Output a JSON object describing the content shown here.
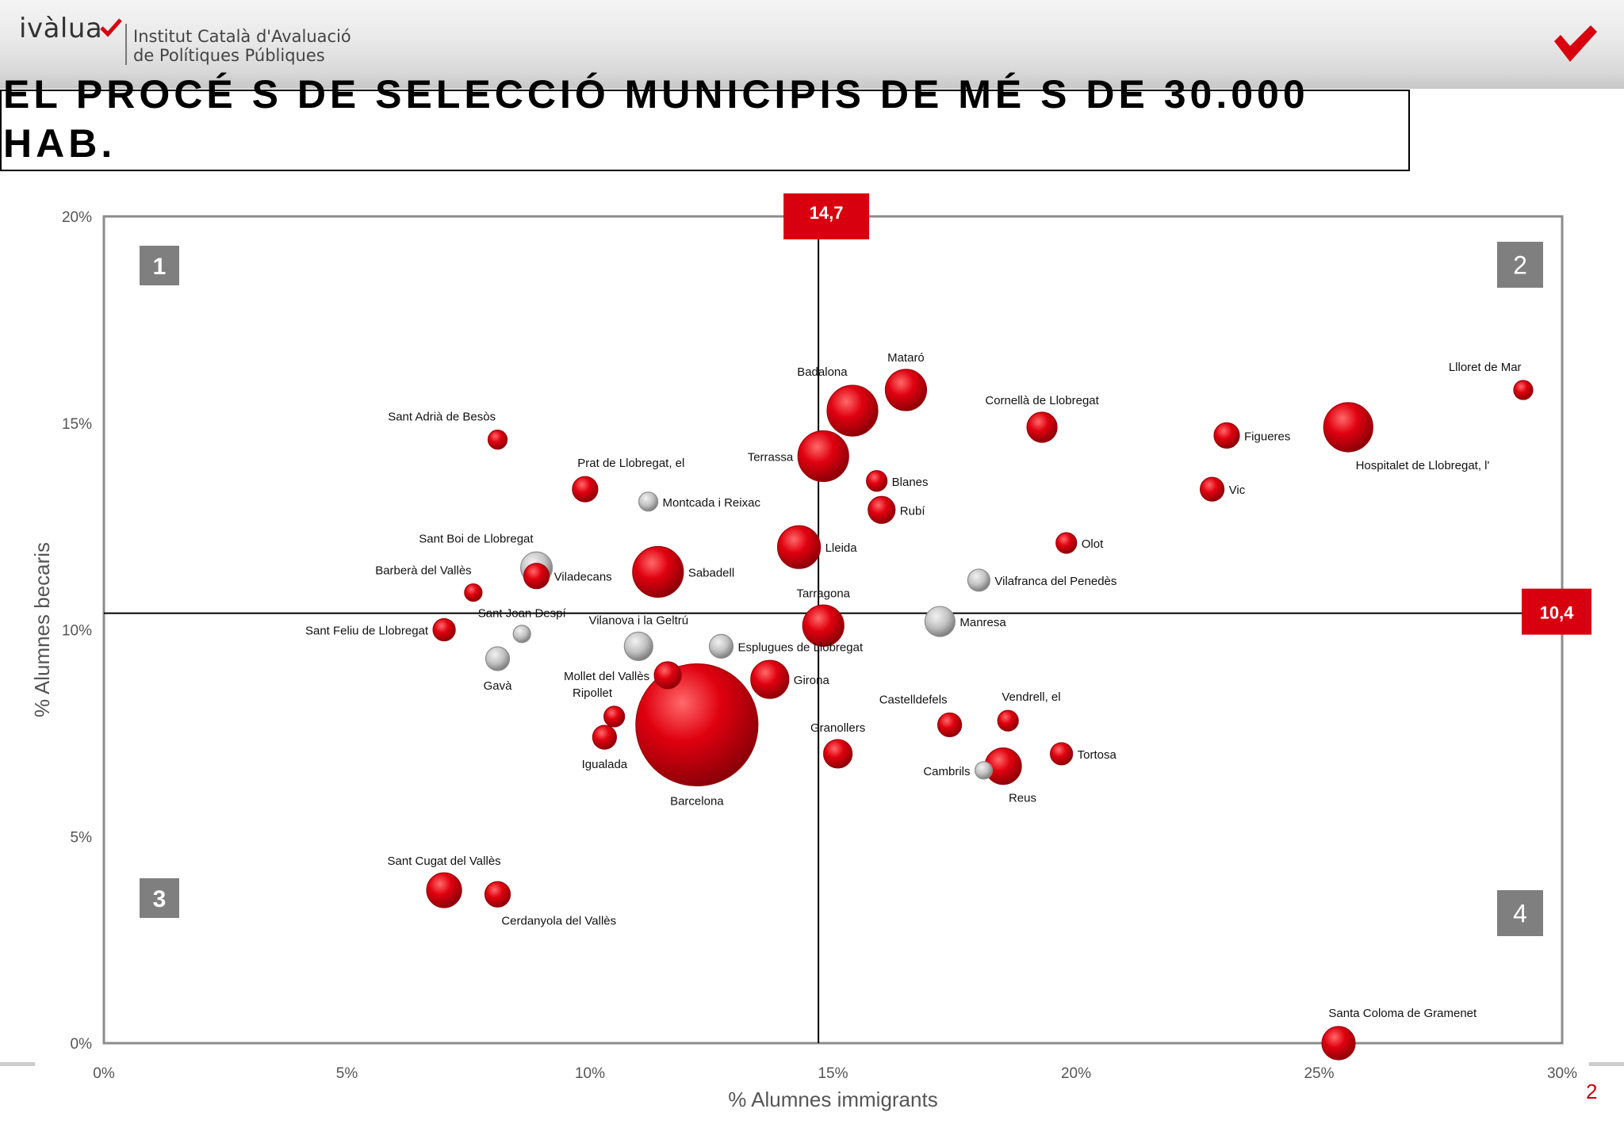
{
  "header": {
    "logo_text": "ivàlua",
    "institute_line1": "Institut Català d'Avaluació",
    "institute_line2": "de Polítiques Públiques",
    "title": "EL PROCÉ S DE SELECCIÓ MUNICIPIS DE MÉ S DE 30.000 HAB."
  },
  "page_number": "2",
  "colors": {
    "brand_red": "#d8000f",
    "bubble_red": "#e0000f",
    "bubble_grey": "#c2c2c2",
    "quadrant_box": "#7f7f7f"
  },
  "chart_data": {
    "type": "scatter",
    "variant": "bubble",
    "xlabel": "% Alumnes immigrants",
    "ylabel": "% Alumnes becaris",
    "xlim": [
      0,
      30
    ],
    "ylim": [
      0,
      20
    ],
    "x_ticks": [
      "0%",
      "5%",
      "10%",
      "15%",
      "20%",
      "25%",
      "30%"
    ],
    "y_ticks": [
      "0%",
      "5%",
      "10%",
      "15%",
      "20%"
    ],
    "reference_lines": [
      {
        "axis": "x",
        "value": 14.7,
        "label": "14,7"
      },
      {
        "axis": "y",
        "value": 10.4,
        "label": "10,4"
      }
    ],
    "quadrants": [
      {
        "label": "1",
        "position": "top-left"
      },
      {
        "label": "2",
        "position": "top-right"
      },
      {
        "label": "3",
        "position": "bottom-left"
      },
      {
        "label": "4",
        "position": "bottom-right"
      }
    ],
    "grid": false,
    "points": [
      {
        "name": "Mataró",
        "x": 16.5,
        "y": 15.8,
        "r": 26,
        "color": "red",
        "label_pos": "above"
      },
      {
        "name": "Badalona",
        "x": 15.4,
        "y": 15.3,
        "r": 32,
        "color": "red",
        "label_pos": "above-left"
      },
      {
        "name": "Llloret de Mar",
        "x": 29.2,
        "y": 15.8,
        "r": 12,
        "color": "red",
        "label_pos": "above-left"
      },
      {
        "name": "Cornellà de Llobregat",
        "x": 19.3,
        "y": 14.9,
        "r": 19,
        "color": "red",
        "label_pos": "above"
      },
      {
        "name": "Figueres",
        "x": 23.1,
        "y": 14.7,
        "r": 16,
        "color": "red",
        "label_pos": "right"
      },
      {
        "name": "Hospitalet de Llobregat, l'",
        "x": 25.6,
        "y": 14.9,
        "r": 31,
        "color": "red",
        "label_pos": "below-right"
      },
      {
        "name": "Sant Adrià de Besòs",
        "x": 8.1,
        "y": 14.6,
        "r": 12,
        "color": "red",
        "label_pos": "above-left"
      },
      {
        "name": "Terrassa",
        "x": 14.8,
        "y": 14.2,
        "r": 32,
        "color": "red",
        "label_pos": "left"
      },
      {
        "name": "Prat de Llobregat, el",
        "x": 9.9,
        "y": 13.4,
        "r": 16,
        "color": "red",
        "label_pos": "above-right"
      },
      {
        "name": "Blanes",
        "x": 15.9,
        "y": 13.6,
        "r": 13,
        "color": "red",
        "label_pos": "right"
      },
      {
        "name": "Vic",
        "x": 22.8,
        "y": 13.4,
        "r": 15,
        "color": "red",
        "label_pos": "right"
      },
      {
        "name": "Montcada i Reixac",
        "x": 11.2,
        "y": 13.1,
        "r": 12,
        "color": "grey",
        "label_pos": "right"
      },
      {
        "name": "Rubí",
        "x": 16.0,
        "y": 12.9,
        "r": 17,
        "color": "red",
        "label_pos": "right"
      },
      {
        "name": "Olot",
        "x": 19.8,
        "y": 12.1,
        "r": 13,
        "color": "red",
        "label_pos": "right"
      },
      {
        "name": "Lleida",
        "x": 14.3,
        "y": 12.0,
        "r": 27,
        "color": "red",
        "label_pos": "right"
      },
      {
        "name": "Sant Boi de Llobregat",
        "x": 8.9,
        "y": 11.5,
        "r": 20,
        "color": "grey",
        "label_pos": "above-left"
      },
      {
        "name": "Sabadell",
        "x": 11.4,
        "y": 11.4,
        "r": 32,
        "color": "red",
        "label_pos": "right"
      },
      {
        "name": "Viladecans",
        "x": 8.9,
        "y": 11.3,
        "r": 16,
        "color": "red",
        "label_pos": "right"
      },
      {
        "name": "Vilafranca del Penedès",
        "x": 18.0,
        "y": 11.2,
        "r": 14,
        "color": "grey",
        "label_pos": "right"
      },
      {
        "name": "Barberà del Vallès",
        "x": 7.6,
        "y": 10.9,
        "r": 11,
        "color": "red",
        "label_pos": "above-left"
      },
      {
        "name": "Tarragona",
        "x": 14.8,
        "y": 10.1,
        "r": 26,
        "color": "red",
        "label_pos": "above"
      },
      {
        "name": "Manresa",
        "x": 17.2,
        "y": 10.2,
        "r": 19,
        "color": "grey",
        "label_pos": "right"
      },
      {
        "name": "Sant Joan Despí",
        "x": 8.6,
        "y": 9.9,
        "r": 11,
        "color": "grey",
        "label_pos": "above"
      },
      {
        "name": "Vilanova i la Geltrú",
        "x": 11.0,
        "y": 9.6,
        "r": 18,
        "color": "grey",
        "label_pos": "above"
      },
      {
        "name": "Sant Feliu de Llobregat",
        "x": 7.0,
        "y": 10.0,
        "r": 14,
        "color": "red",
        "label_pos": "left"
      },
      {
        "name": "Esplugues de Llobregat",
        "x": 12.7,
        "y": 9.6,
        "r": 15,
        "color": "grey",
        "label_pos": "right"
      },
      {
        "name": "Gavà",
        "x": 8.1,
        "y": 9.3,
        "r": 15,
        "color": "grey",
        "label_pos": "below"
      },
      {
        "name": "Mollet del Vallès",
        "x": 11.6,
        "y": 8.9,
        "r": 17,
        "color": "red",
        "label_pos": "left"
      },
      {
        "name": "Girona",
        "x": 13.7,
        "y": 8.8,
        "r": 24,
        "color": "red",
        "label_pos": "right"
      },
      {
        "name": "Ripollet",
        "x": 10.5,
        "y": 7.9,
        "r": 13,
        "color": "red",
        "label_pos": "above-left"
      },
      {
        "name": "Barcelona",
        "x": 12.2,
        "y": 7.7,
        "r": 77,
        "color": "red",
        "label_pos": "below"
      },
      {
        "name": "Castelldefels",
        "x": 17.4,
        "y": 7.7,
        "r": 15,
        "color": "red",
        "label_pos": "above-left"
      },
      {
        "name": "Vendrell, el",
        "x": 18.6,
        "y": 7.8,
        "r": 13,
        "color": "red",
        "label_pos": "above-right"
      },
      {
        "name": "Igualada",
        "x": 10.3,
        "y": 7.4,
        "r": 15,
        "color": "red",
        "label_pos": "below"
      },
      {
        "name": "Granollers",
        "x": 15.1,
        "y": 7.0,
        "r": 18,
        "color": "red",
        "label_pos": "above"
      },
      {
        "name": "Tortosa",
        "x": 19.7,
        "y": 7.0,
        "r": 14,
        "color": "red",
        "label_pos": "right"
      },
      {
        "name": "Cambrils",
        "x": 18.1,
        "y": 6.6,
        "r": 11,
        "color": "grey",
        "label_pos": "left"
      },
      {
        "name": "Reus",
        "x": 18.5,
        "y": 6.7,
        "r": 23,
        "color": "red",
        "label_pos": "below-right"
      },
      {
        "name": "Sant Cugat del Vallès",
        "x": 7.0,
        "y": 3.7,
        "r": 22,
        "color": "red",
        "label_pos": "above"
      },
      {
        "name": "Cerdanyola del Vallès",
        "x": 8.1,
        "y": 3.6,
        "r": 16,
        "color": "red",
        "label_pos": "below-right"
      },
      {
        "name": "Santa Coloma de Gramenet",
        "x": 25.4,
        "y": 0.0,
        "r": 21,
        "color": "red",
        "label_pos": "above-right"
      }
    ]
  }
}
